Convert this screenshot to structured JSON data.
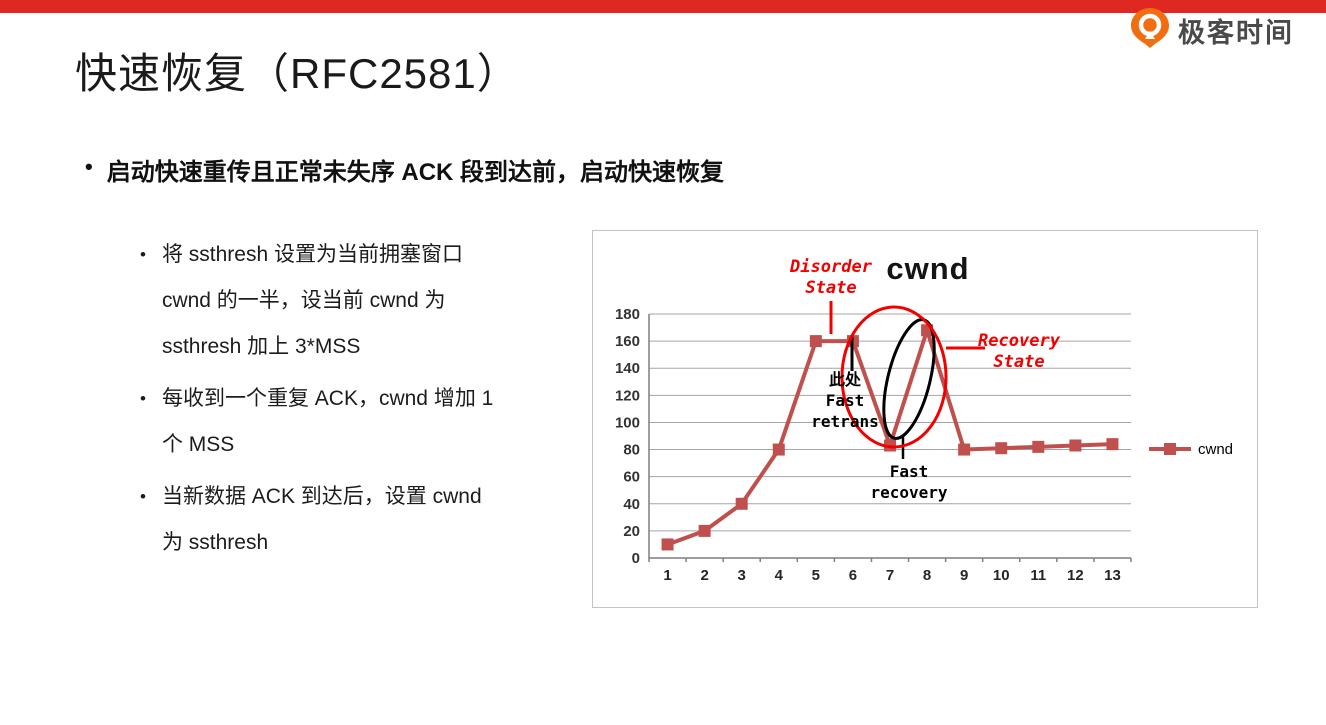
{
  "brand": {
    "logo_text": "极客时间",
    "logo_color": "#f26d10"
  },
  "slide": {
    "top_bar_color": "#e02822",
    "title": "快速恢复（RFC2581）",
    "bullet": "启动快速重传且正常未失序 ACK 段到达前，启动快速恢复",
    "sub_bullets": [
      {
        "lines": [
          "将 ssthresh 设置为当前拥塞窗口",
          "cwnd 的一半，设当前 cwnd 为",
          "ssthresh 加上 3*MSS"
        ]
      },
      {
        "lines": [
          "每收到一个重复 ACK，cwnd 增加 1",
          "个 MSS"
        ]
      },
      {
        "lines": [
          "当新数据 ACK 到达后，设置 cwnd",
          "为 ssthresh"
        ]
      }
    ]
  },
  "chart_data": {
    "type": "line",
    "title": "cwnd",
    "x": [
      1,
      2,
      3,
      4,
      5,
      6,
      7,
      8,
      9,
      10,
      11,
      12,
      13
    ],
    "series": [
      {
        "name": "cwnd",
        "color": "#c0504d",
        "values": [
          10,
          20,
          40,
          80,
          160,
          160,
          83,
          168,
          80,
          81,
          82,
          83,
          84
        ]
      }
    ],
    "xlabel": "",
    "ylabel": "",
    "ylim": [
      0,
      180
    ],
    "ytick_step": 20,
    "grid": true,
    "legend_position": "right",
    "legend": [
      "cwnd"
    ],
    "annotations": [
      {
        "id": "disorder-state",
        "color": "#f20000",
        "lines": [
          "Disorder",
          "State"
        ]
      },
      {
        "id": "fast-retrans",
        "color": "#000000",
        "lines": [
          "此处",
          "Fast",
          "retrans"
        ]
      },
      {
        "id": "fast-recovery",
        "color": "#000000",
        "lines": [
          "Fast",
          "recovery"
        ]
      },
      {
        "id": "recovery-state",
        "color": "#f20000",
        "lines": [
          "Recovery",
          "State"
        ]
      }
    ]
  }
}
